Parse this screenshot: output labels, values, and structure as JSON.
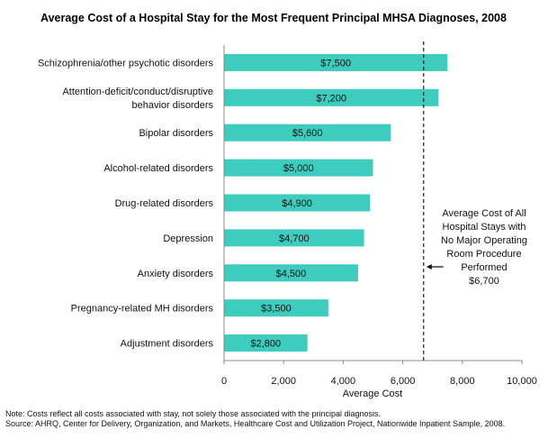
{
  "chart_data": {
    "type": "bar",
    "orientation": "horizontal",
    "title": "Average Cost of a Hospital Stay for the Most Frequent Principal MHSA Diagnoses, 2008",
    "categories": [
      [
        "Schizophrenia/other psychotic disorders"
      ],
      [
        "Attention-deficit/conduct/disruptive",
        "behavior disorders"
      ],
      [
        "Bipolar disorders"
      ],
      [
        "Alcohol-related disorders"
      ],
      [
        "Drug-related disorders"
      ],
      [
        "Depression"
      ],
      [
        "Anxiety disorders"
      ],
      [
        "Pregnancy-related MH disorders"
      ],
      [
        "Adjustment disorders"
      ]
    ],
    "values": [
      7500,
      7200,
      5600,
      5000,
      4900,
      4700,
      4500,
      3500,
      2800
    ],
    "value_labels": [
      "$7,500",
      "$7,200",
      "$5,600",
      "$5,000",
      "$4,900",
      "$4,700",
      "$4,500",
      "$3,500",
      "$2,800"
    ],
    "xlabel": "Average Cost",
    "ylabel": "",
    "xlim": [
      0,
      10000
    ],
    "xticks": [
      0,
      2000,
      4000,
      6000,
      8000,
      10000
    ],
    "xtick_labels": [
      "0",
      "2,000",
      "4,000",
      "6,000",
      "8,000",
      "10,000"
    ],
    "grid": false,
    "bar_color": "#3ECCBE",
    "reference_line": {
      "value": 6700,
      "style": "dashed",
      "annotation": [
        "Average Cost of All",
        "Hospital Stays with",
        "No Major Operating",
        "Room Procedure",
        "Performed",
        "$6,700"
      ]
    }
  },
  "notes": {
    "note": "Note:  Costs reflect all costs associated with stay, not solely those associated with the principal diagnosis.",
    "source": "Source:  AHRQ, Center for Delivery, Organization, and Markets, Healthcare Cost and Utilization Project, Nationwide Inpatient Sample, 2008."
  }
}
